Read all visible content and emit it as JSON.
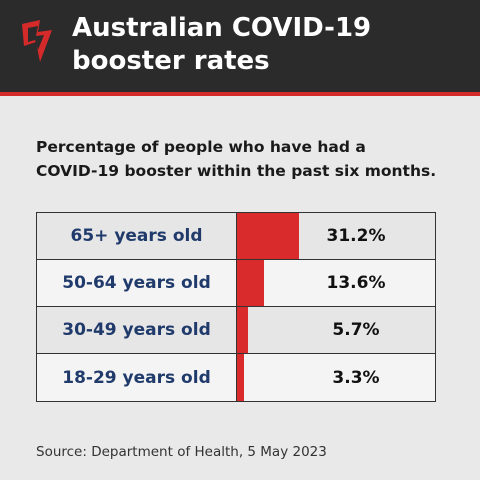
{
  "header": {
    "title_lines": [
      "Australian COVID-19",
      "booster rates"
    ],
    "logo_icon": "sbs-news-logo-icon"
  },
  "subtitle_lines": [
    "Percentage of people who have had a",
    "COVID-19 booster within the past six months."
  ],
  "source": "Source: Department of Health, 5 May 2023",
  "colors": {
    "header_bg": "#2b2b2b",
    "accent": "#d92b2b",
    "label_text": "#1f3a6b",
    "page_bg": "#e9e9e9"
  },
  "chart_data": {
    "type": "bar",
    "orientation": "horizontal",
    "categories": [
      "65+ years old",
      "50-64 years old",
      "30-49 years old",
      "18-29 years old"
    ],
    "values": [
      31.2,
      13.6,
      5.7,
      3.3
    ],
    "value_labels": [
      "31.2%",
      "13.6%",
      "5.7%",
      "3.3%"
    ],
    "xlim": [
      0,
      100
    ],
    "title": "",
    "xlabel": "",
    "ylabel": "",
    "grid": false
  }
}
